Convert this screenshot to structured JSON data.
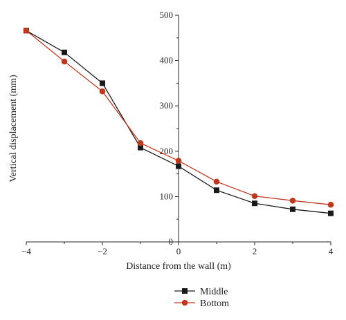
{
  "chart_data": {
    "type": "line",
    "xlabel": "Distance from the wall (m)",
    "ylabel": "Vertical displacement (mm)",
    "xlim": [
      -4,
      4
    ],
    "ylim": [
      0,
      500
    ],
    "x_ticks": [
      -4,
      -2,
      0,
      2,
      4
    ],
    "y_ticks": [
      0,
      100,
      200,
      300,
      400,
      500
    ],
    "y_axis_side": "center (x = 0)",
    "grid": false,
    "legend_position": "bottom-center",
    "series": [
      {
        "name": "Middle",
        "color": "#1a1a1a",
        "marker": "square",
        "x": [
          -4,
          -3,
          -2,
          -1,
          0,
          1,
          2,
          3,
          4
        ],
        "y": [
          466,
          418,
          350,
          208,
          167,
          114,
          85,
          72,
          63
        ]
      },
      {
        "name": "Bottom",
        "color": "#c0391d",
        "marker": "circle",
        "x": [
          -4,
          -3,
          -2,
          -1,
          0,
          1,
          2,
          3,
          4
        ],
        "y": [
          466,
          398,
          332,
          218,
          179,
          133,
          101,
          91,
          82
        ]
      }
    ]
  }
}
